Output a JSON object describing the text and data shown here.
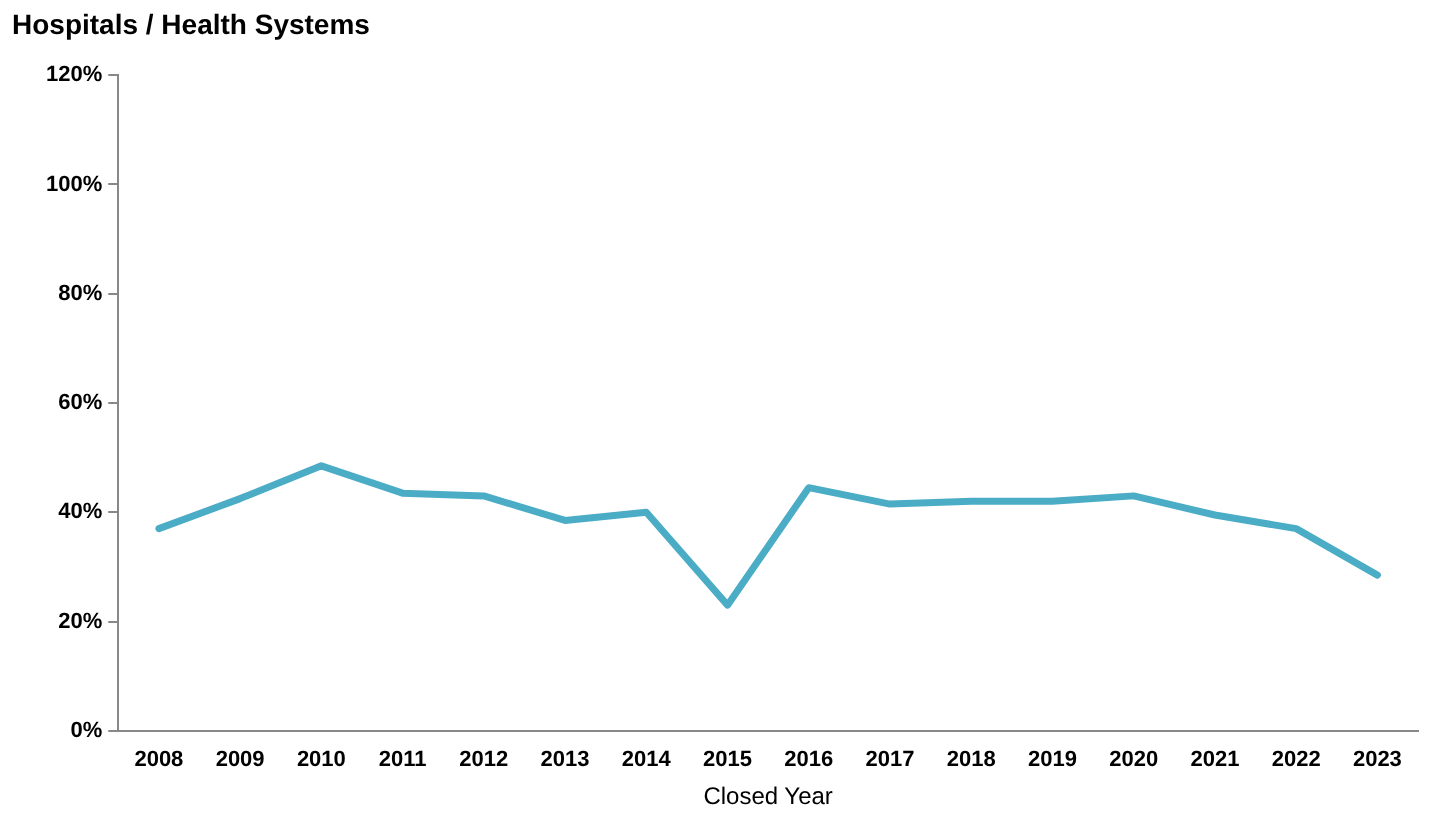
{
  "chart_data": {
    "type": "line",
    "title": "Hospitals / Health Systems",
    "xlabel": "Closed Year",
    "categories": [
      "2008",
      "2009",
      "2010",
      "2011",
      "2012",
      "2013",
      "2014",
      "2015",
      "2016",
      "2017",
      "2018",
      "2019",
      "2020",
      "2021",
      "2022",
      "2023"
    ],
    "series": [
      {
        "color": "#4bacc6",
        "values": [
          37,
          42.5,
          48.5,
          43.5,
          43,
          38.5,
          40,
          23,
          44.5,
          41.5,
          42,
          42,
          43,
          39.5,
          37,
          28.5
        ]
      }
    ],
    "ylim": [
      0,
      120
    ],
    "yticks": [
      {
        "value": 0,
        "label": "0%"
      },
      {
        "value": 20,
        "label": "20%"
      },
      {
        "value": 40,
        "label": "40%"
      },
      {
        "value": 60,
        "label": "60%"
      },
      {
        "value": 80,
        "label": "80%"
      },
      {
        "value": 100,
        "label": "100%"
      },
      {
        "value": 120,
        "label": "120%"
      }
    ],
    "grid": false,
    "legend": false,
    "marker": "none",
    "line_style": "solid"
  }
}
